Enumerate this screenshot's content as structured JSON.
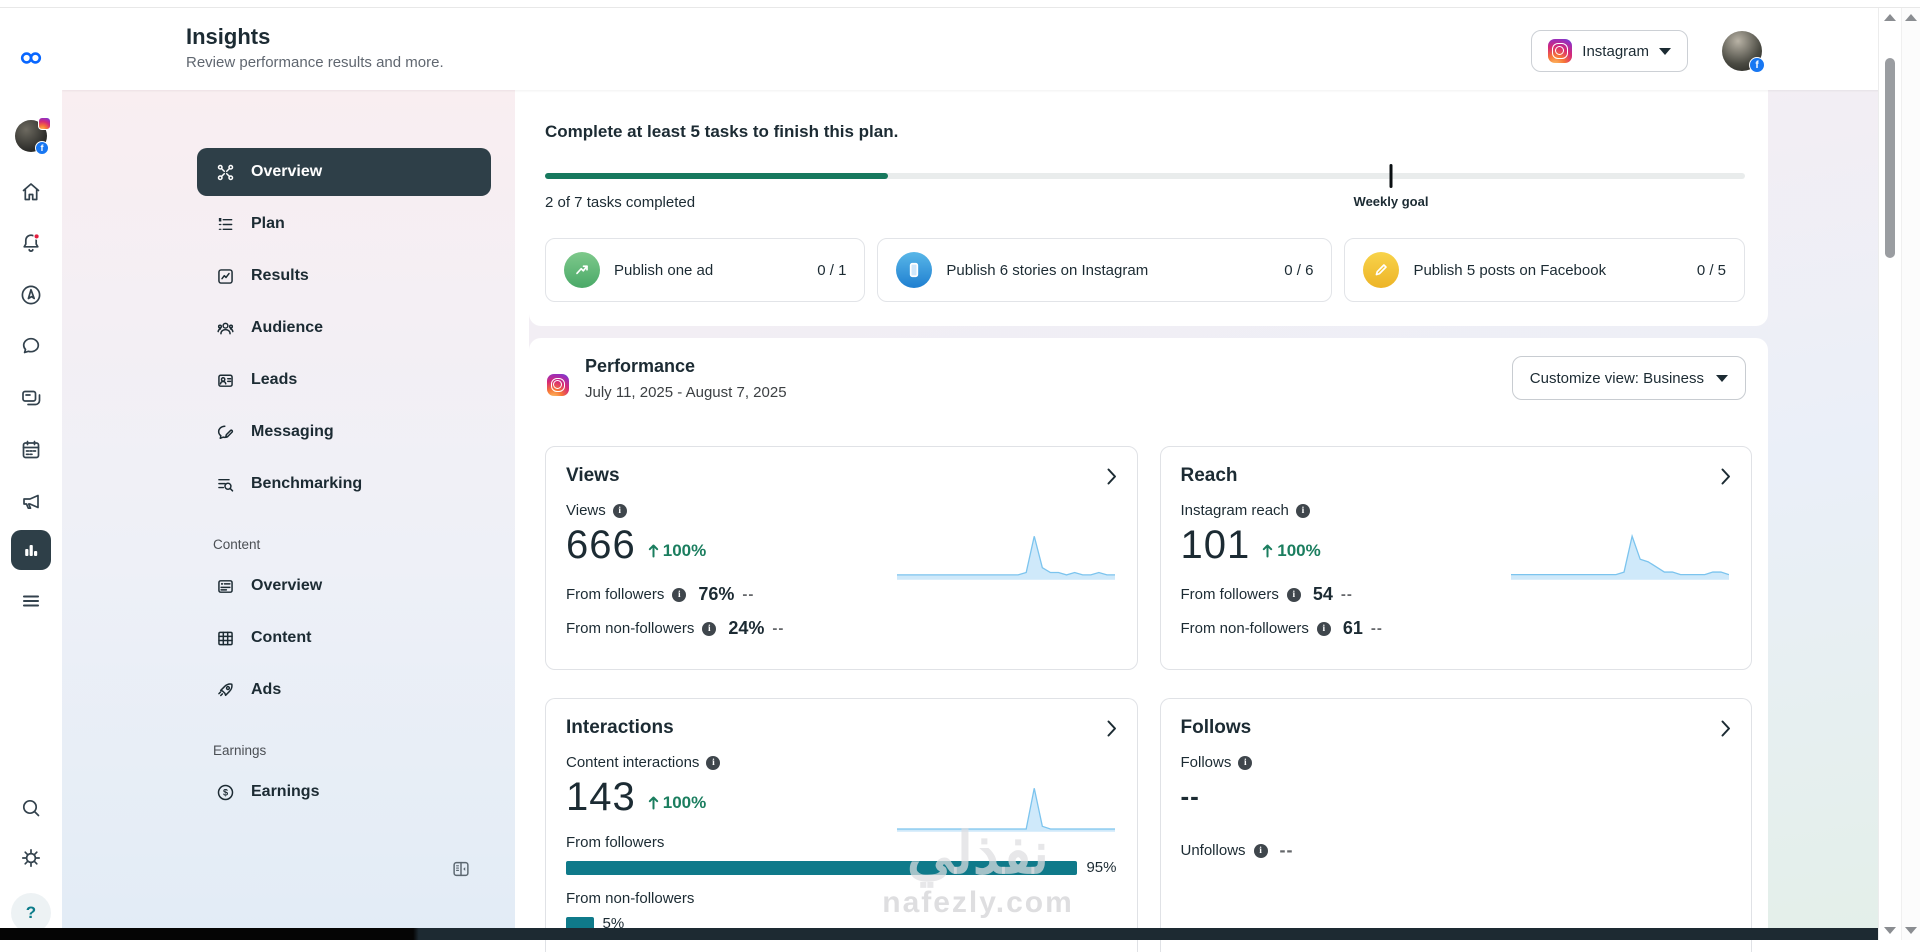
{
  "icons": {
    "info_glyph": "i",
    "help_glyph": "?",
    "earnings_glyph": "$",
    "facebook_glyph": "f"
  },
  "colors": {
    "progress_green": "#17795e",
    "positive_green": "#1b7e5f",
    "bar_teal": "#0f7a8a",
    "selected_dark": "#2e3f48",
    "notification_red": "#e41e3f",
    "facebook_blue": "#1877f2",
    "spark_stroke": "#7cc4ee",
    "spark_fill": "#cfe9fa"
  },
  "header": {
    "title": "Insights",
    "subtitle": "Review performance results and more.",
    "account_selector": {
      "label": "Instagram"
    }
  },
  "sidebar": {
    "items": [
      {
        "label": "Overview",
        "selected": true
      },
      {
        "label": "Plan"
      },
      {
        "label": "Results"
      },
      {
        "label": "Audience"
      },
      {
        "label": "Leads"
      },
      {
        "label": "Messaging"
      },
      {
        "label": "Benchmarking"
      }
    ],
    "sections": [
      {
        "label": "Content",
        "items": [
          {
            "label": "Overview"
          },
          {
            "label": "Content"
          },
          {
            "label": "Ads"
          }
        ]
      },
      {
        "label": "Earnings",
        "items": [
          {
            "label": "Earnings"
          }
        ]
      }
    ]
  },
  "tasks": {
    "title": "Complete at least 5 tasks to finish this plan.",
    "progress_percent": 28.6,
    "weekly_goal_percent": 70.5,
    "weekly_goal_label": "Weekly goal",
    "completed_label": "2 of 7 tasks completed",
    "cards": [
      {
        "label": "Publish one ad",
        "count": "0 / 1"
      },
      {
        "label": "Publish 6 stories on Instagram",
        "count": "0 / 6"
      },
      {
        "label": "Publish 5 posts on Facebook",
        "count": "0 / 5"
      }
    ]
  },
  "performance": {
    "title": "Performance",
    "date_range": "July 11, 2025 - August 7, 2025",
    "customize_label": "Customize view: Business",
    "cards": [
      {
        "title": "Views",
        "metric_label": "Views",
        "value": "666",
        "change": "100%",
        "sparkline": [
          2,
          2,
          2,
          2,
          2,
          2,
          2,
          2,
          2,
          2,
          2,
          2,
          2,
          2,
          2,
          2,
          3,
          18,
          5,
          3,
          3,
          2,
          3,
          2,
          2,
          3,
          2,
          2
        ],
        "rows": [
          {
            "label": "From followers",
            "value": "76%",
            "suffix": "--"
          },
          {
            "label": "From non-followers",
            "value": "24%",
            "suffix": "--"
          }
        ]
      },
      {
        "title": "Reach",
        "metric_label": "Instagram reach",
        "value": "101",
        "change": "100%",
        "sparkline": [
          2,
          2,
          2,
          2,
          2,
          2,
          2,
          2,
          2,
          2,
          2,
          2,
          2,
          2,
          3,
          17,
          8,
          7,
          5,
          3,
          3,
          2,
          2,
          2,
          2,
          3,
          3,
          2
        ],
        "rows": [
          {
            "label": "From followers",
            "value": "54",
            "suffix": "--"
          },
          {
            "label": "From non-followers",
            "value": "61",
            "suffix": "--"
          }
        ]
      },
      {
        "title": "Interactions",
        "metric_label": "Content interactions",
        "value": "143",
        "change": "100%",
        "sparkline": [
          1,
          1,
          1,
          1,
          1,
          1,
          1,
          1,
          1,
          1,
          1,
          1,
          1,
          1,
          1,
          1,
          1,
          16,
          2,
          1,
          1,
          1,
          1,
          1,
          1,
          1,
          1,
          1
        ],
        "bars": [
          {
            "label": "From followers",
            "percent": 95,
            "value": "95%"
          },
          {
            "label": "From non-followers",
            "percent": 5,
            "value": "5%"
          }
        ]
      },
      {
        "title": "Follows",
        "metric_label": "Follows",
        "value": "--",
        "rows": [
          {
            "label": "Unfollows",
            "value": "--"
          }
        ]
      }
    ]
  },
  "watermark": {
    "line1": "نفذلي",
    "line2": "nafezly.com"
  }
}
